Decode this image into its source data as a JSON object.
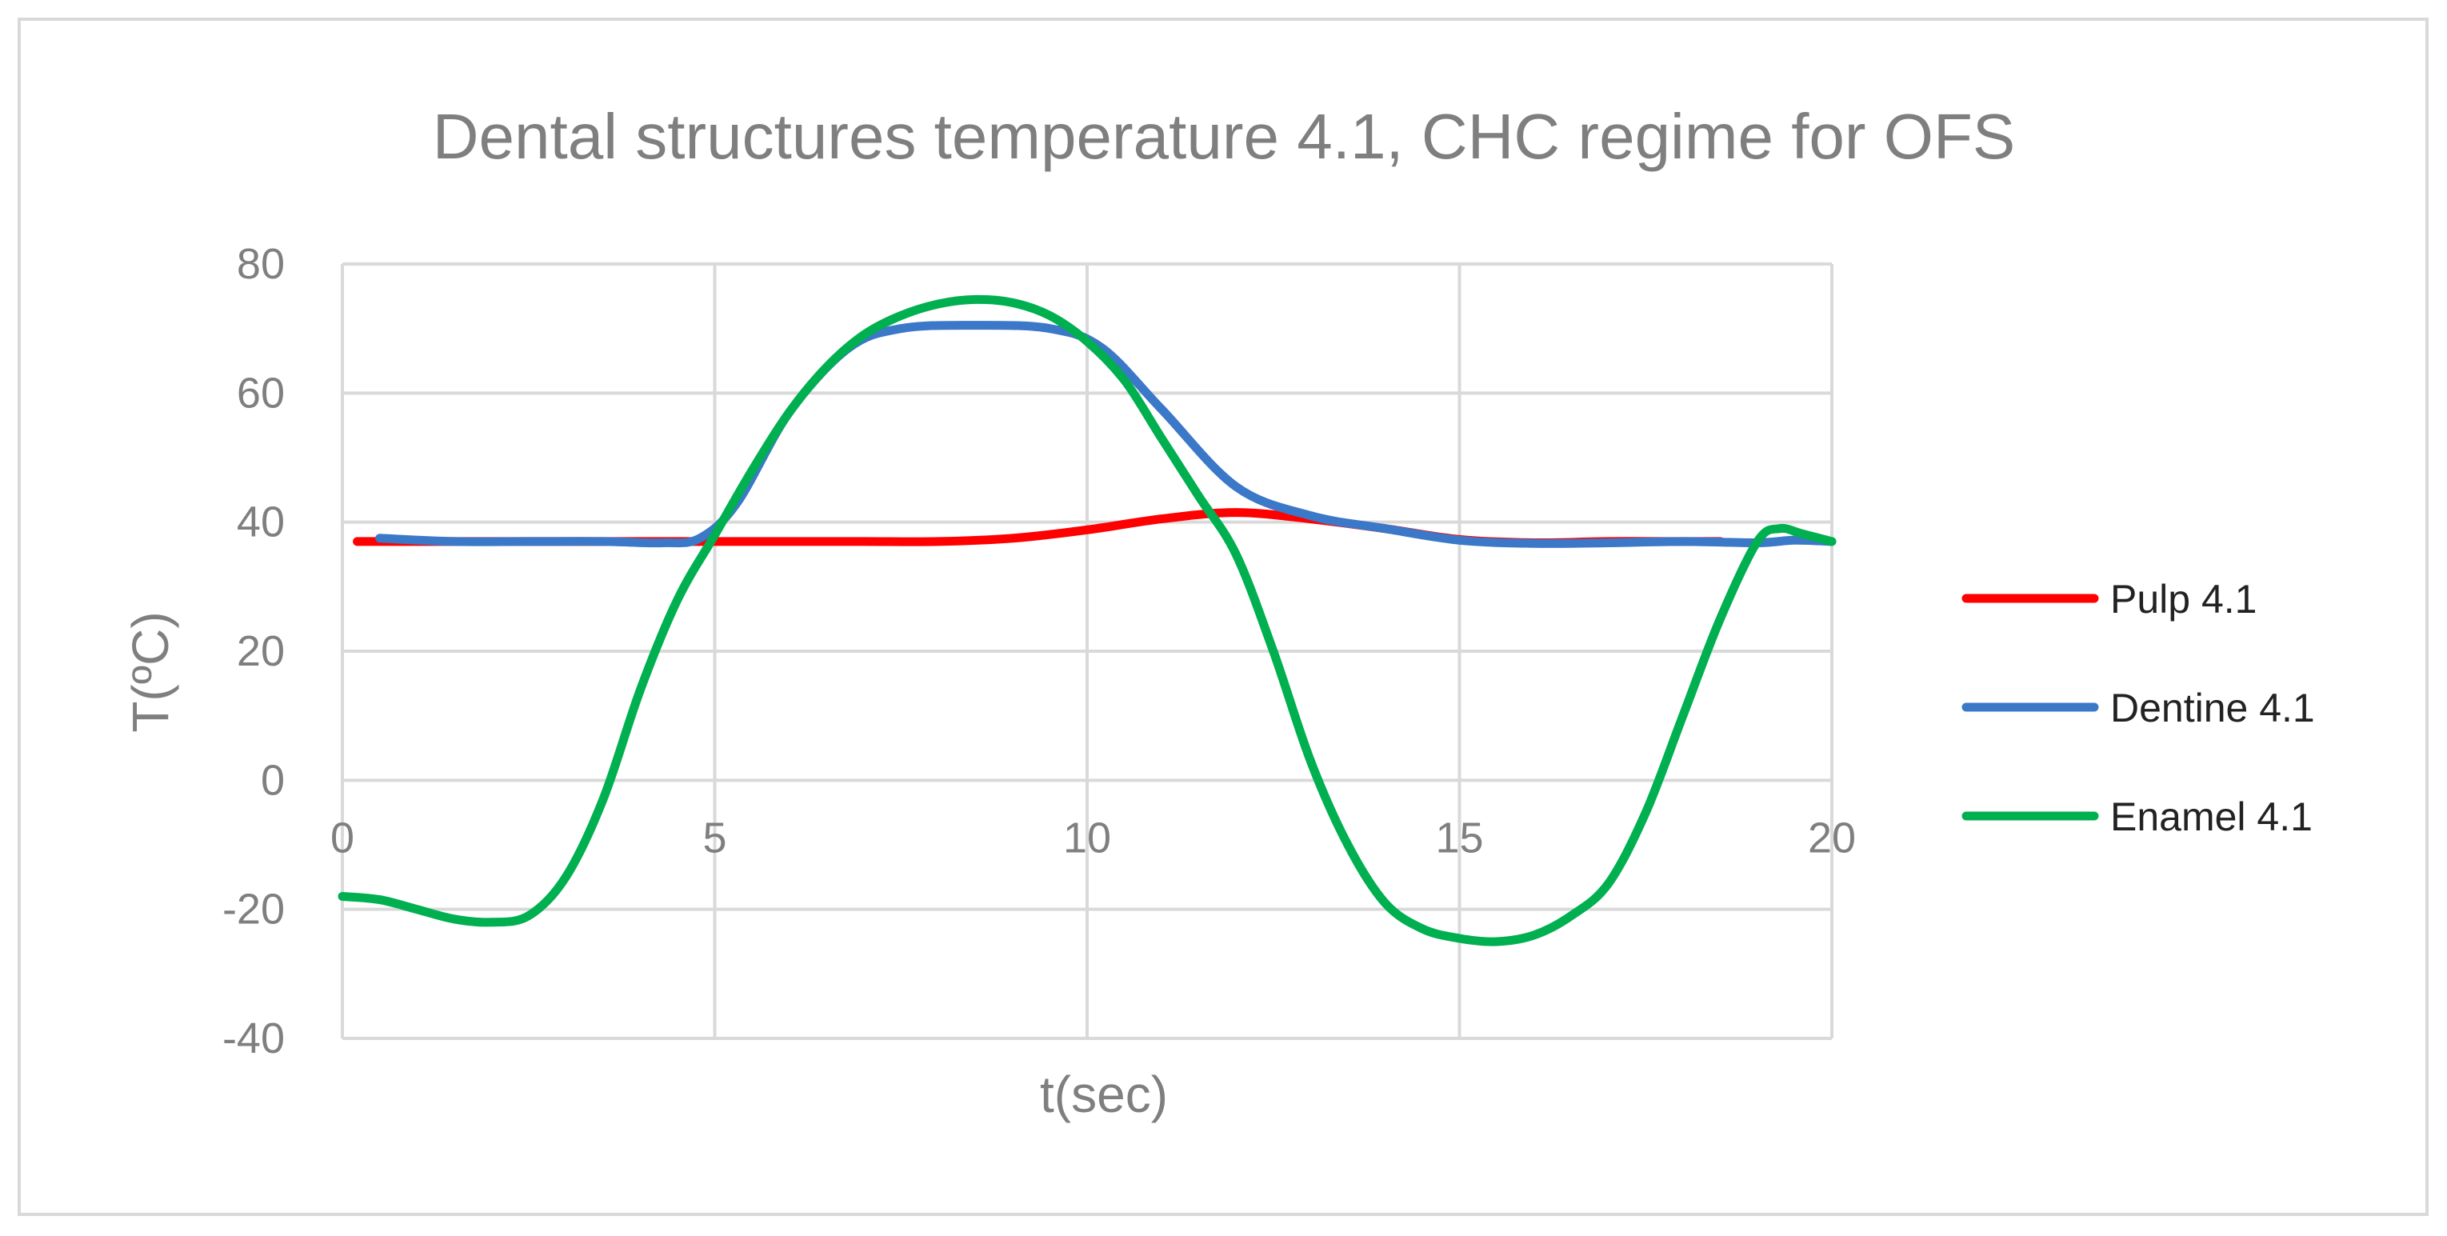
{
  "chart_data": {
    "type": "line",
    "title": "Dental structures temperature 4.1, CHC regime for OFS",
    "xlabel": "t(sec)",
    "ylabel": "T(ºC)",
    "xlim": [
      0,
      20
    ],
    "ylim": [
      -40,
      80
    ],
    "xticks": [
      0,
      5,
      10,
      15,
      20
    ],
    "yticks": [
      -40,
      -20,
      0,
      20,
      40,
      60,
      80
    ],
    "x_tick_labels": [
      "0",
      "5",
      "10",
      "15",
      "20"
    ],
    "y_tick_labels": [
      "-40",
      "-20",
      "0",
      "20",
      "40",
      "60",
      "80"
    ],
    "grid": true,
    "legend_position": "right",
    "series": [
      {
        "name": "Pulp 4.1",
        "color": "#ff0000",
        "x": [
          0.2,
          1,
          2,
          3,
          4,
          5,
          6,
          7,
          8,
          9,
          10,
          11,
          12,
          13,
          14,
          15,
          16,
          17,
          18,
          18.5
        ],
        "y": [
          37,
          37,
          37,
          37,
          37,
          37,
          37,
          37,
          37,
          37.5,
          38.8,
          40.5,
          41.5,
          40.5,
          39,
          37.3,
          36.8,
          37,
          37,
          37
        ]
      },
      {
        "name": "Dentine 4.1",
        "color": "#3b78c8",
        "x": [
          0.5,
          1.5,
          2.5,
          3.5,
          4.3,
          4.8,
          5.3,
          6,
          6.8,
          7.5,
          8.5,
          9.5,
          10.2,
          11,
          12,
          13,
          14,
          15,
          16,
          17,
          18,
          19,
          19.5,
          20
        ],
        "y": [
          37.5,
          37,
          37,
          37,
          36.8,
          37.5,
          43,
          57,
          67,
          70,
          70.5,
          70,
          67,
          57.5,
          45.5,
          41,
          39,
          37.2,
          36.7,
          36.8,
          37,
          36.8,
          37.2,
          37
        ]
      },
      {
        "name": "Enamel 4.1",
        "color": "#00b050",
        "x": [
          0,
          0.5,
          1,
          1.5,
          2,
          2.5,
          3,
          3.5,
          4,
          4.5,
          5,
          5.5,
          6,
          6.5,
          7,
          7.5,
          8,
          8.5,
          9,
          9.5,
          10,
          10.5,
          11,
          11.5,
          12,
          12.5,
          13,
          13.5,
          14,
          14.5,
          15,
          15.5,
          16,
          16.5,
          17,
          17.5,
          18,
          18.5,
          19,
          19.3,
          19.6,
          20
        ],
        "y": [
          -18,
          -18.5,
          -20,
          -21.5,
          -22,
          -21,
          -15,
          -3,
          14,
          28,
          38,
          48,
          57,
          64,
          69,
          72,
          73.8,
          74.5,
          74,
          72,
          68,
          62,
          53,
          44,
          35,
          20,
          3,
          -10,
          -19,
          -23,
          -24.5,
          -25,
          -24,
          -21,
          -16,
          -5,
          10,
          25,
          37,
          39,
          38.2,
          37
        ]
      }
    ]
  }
}
